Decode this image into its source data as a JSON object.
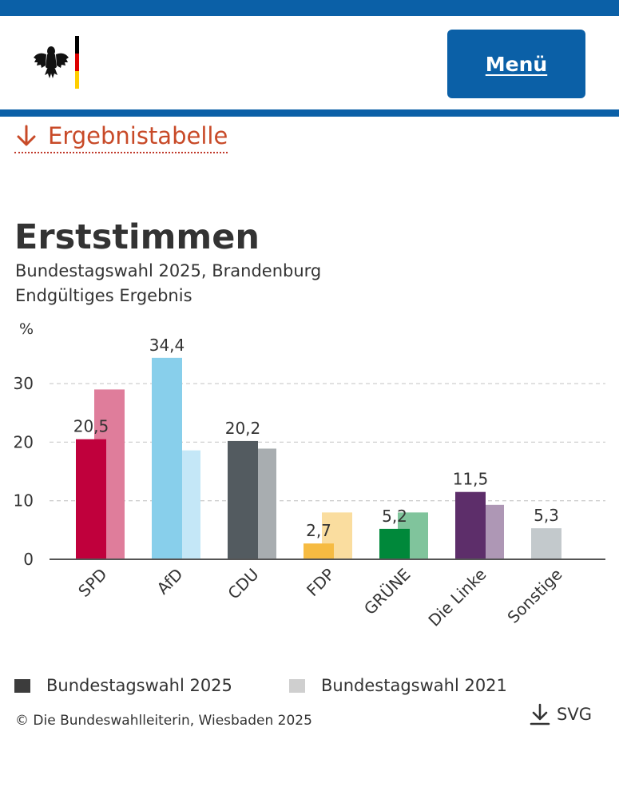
{
  "colors": {
    "brand_blue": "#0b60a7",
    "link_red": "#c84a28"
  },
  "header": {
    "logo_icon": "federal-eagle-logo",
    "menu_label": "Menü"
  },
  "result_link": {
    "icon": "arrow-down-icon",
    "label": "Ergebnistabelle"
  },
  "chart_data": {
    "type": "bar",
    "title": "Erststimmen",
    "subtitle": "Bundestagswahl 2025, Brandenburg",
    "status": "Endgültiges Ergebnis",
    "ylabel": "%",
    "ylim": [
      0,
      36
    ],
    "yticks": [
      0,
      10,
      20,
      30
    ],
    "ytick_labels": [
      "0",
      "10",
      "20",
      "30"
    ],
    "grid": true,
    "categories": [
      "SPD",
      "AfD",
      "CDU",
      "FDP",
      "GRÜNE",
      "Die Linke",
      "Sonstige"
    ],
    "series": [
      {
        "name": "Bundestagswahl 2025",
        "values": [
          20.5,
          34.4,
          20.2,
          2.7,
          5.2,
          11.5,
          5.3
        ],
        "labels": [
          "20,5",
          "34,4",
          "20,2",
          "2,7",
          "5,2",
          "11,5",
          "5,3"
        ],
        "colors": [
          "#c0003c",
          "#88cfeb",
          "#535b60",
          "#f6bb42",
          "#00883a",
          "#5d2e6a",
          "#c3c9cc"
        ]
      },
      {
        "name": "Bundestagswahl 2021",
        "values": [
          29.0,
          18.6,
          18.9,
          8.0,
          8.0,
          9.3,
          null
        ],
        "colors": [
          "#df7d9b",
          "#c4e7f7",
          "#a8adb0",
          "#fadd9f",
          "#80c49c",
          "#ae97b5",
          "#ffffff"
        ]
      }
    ]
  },
  "legend": {
    "items": [
      {
        "label": "Bundestagswahl 2025",
        "color": "#3c3c3c"
      },
      {
        "label": "Bundestagswahl 2021",
        "color": "#cfcfcf"
      }
    ]
  },
  "footer": {
    "copyright": "© Die Bundeswahlleiterin, Wiesbaden 2025",
    "download_icon": "download-icon",
    "download_label": "SVG"
  }
}
